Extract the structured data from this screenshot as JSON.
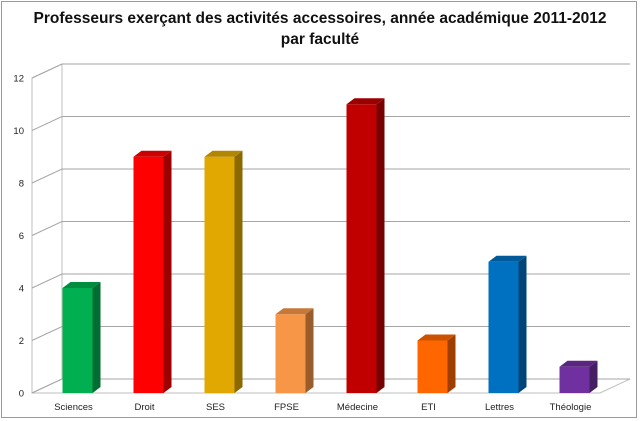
{
  "chart_data": {
    "type": "bar",
    "title_lines": [
      "Professeurs exerçant des activités accessoires, année académique 2011-2012",
      "par faculté"
    ],
    "categories": [
      "Sciences",
      "Droit",
      "SES",
      "FPSE",
      "Médecine",
      "ETI",
      "Lettres",
      "Théologie"
    ],
    "values": [
      4,
      9,
      9,
      3,
      11,
      2,
      5,
      1
    ],
    "colors": [
      "#00b050",
      "#ff0000",
      "#e0a800",
      "#f79646",
      "#c00000",
      "#ff6600",
      "#0070c0",
      "#7030a0"
    ],
    "ylim": [
      0,
      12
    ],
    "yticks": [
      0,
      2,
      4,
      6,
      8,
      10,
      12
    ],
    "grid": true,
    "legend": "none",
    "style": "3d-column"
  }
}
